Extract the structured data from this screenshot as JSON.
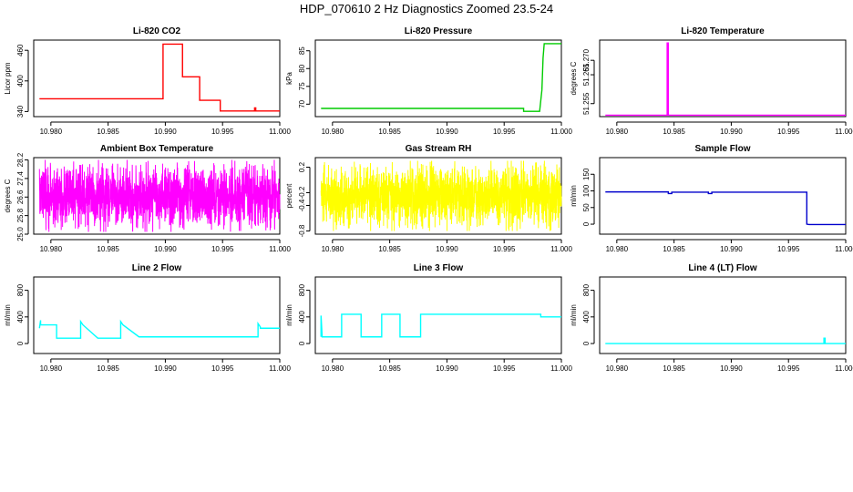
{
  "page_title": "HDP_070610  2 Hz Diagnostics Zoomed 23.5-24",
  "chart_data": [
    {
      "type": "line",
      "title": "Li-820 CO2",
      "ylabel": "Licor ppm",
      "color": "#ff0000",
      "xlim": [
        10.9785,
        11.0
      ],
      "ylim": [
        330,
        480
      ],
      "xticks": [
        10.98,
        10.985,
        10.99,
        10.995,
        11.0
      ],
      "xtick_labels": [
        "10.980",
        "10.985",
        "10.990",
        "10.995",
        "11.000"
      ],
      "yticks": [
        340,
        400,
        460
      ],
      "ytick_labels": [
        "340",
        "400",
        "460"
      ],
      "series": [
        {
          "x": [
            10.979,
            10.9898,
            10.9898,
            10.9915,
            10.9915,
            10.993,
            10.993,
            10.9948,
            10.9948,
            10.9978,
            10.9978,
            10.9979,
            10.9979,
            11.0
          ],
          "y": [
            365,
            365,
            472,
            472,
            408,
            408,
            362,
            362,
            341,
            341,
            347,
            347,
            341,
            341
          ]
        }
      ]
    },
    {
      "type": "line",
      "title": "Li-820 Pressure",
      "ylabel": "kPa",
      "color": "#00cc00",
      "xlim": [
        10.9785,
        11.0
      ],
      "ylim": [
        66.5,
        88
      ],
      "xticks": [
        10.98,
        10.985,
        10.99,
        10.995,
        11.0
      ],
      "xtick_labels": [
        "10.980",
        "10.985",
        "10.990",
        "10.995",
        "11.000"
      ],
      "yticks": [
        70,
        75,
        80,
        85
      ],
      "ytick_labels": [
        "70",
        "75",
        "80",
        "85"
      ],
      "series": [
        {
          "x": [
            10.979,
            10.9967,
            10.9967,
            10.9981,
            10.9983,
            10.9984,
            10.9985,
            10.9992,
            11.0
          ],
          "y": [
            68.8,
            68.8,
            68.0,
            68.0,
            74.0,
            83.0,
            87.0,
            87.0,
            87.0
          ]
        }
      ]
    },
    {
      "type": "line",
      "title": "Li-820 Temperature",
      "ylabel": "degrees C",
      "color": "#ff00ff",
      "xlim": [
        10.9785,
        11.0
      ],
      "ylim": [
        51.2505,
        51.277
      ],
      "xticks": [
        10.98,
        10.985,
        10.99,
        10.995,
        11.0
      ],
      "xtick_labels": [
        "10.980",
        "10.985",
        "10.990",
        "10.995",
        "11.000"
      ],
      "yticks": [
        51.255,
        51.265,
        51.27
      ],
      "ytick_labels": [
        "51.255",
        "51.265",
        "51.270"
      ],
      "series": [
        {
          "x": [
            10.979,
            10.9844,
            10.9844,
            10.9845,
            10.9845,
            11.0
          ],
          "y": [
            51.251,
            51.251,
            51.276,
            51.276,
            51.251,
            51.251
          ]
        }
      ]
    },
    {
      "type": "line",
      "title": "Ambient Box Temperature",
      "ylabel": "degrees C",
      "color": "#ff00ff",
      "xlim": [
        10.9785,
        11.0
      ],
      "ylim": [
        25.0,
        28.3
      ],
      "xticks": [
        10.98,
        10.985,
        10.99,
        10.995,
        11.0
      ],
      "xtick_labels": [
        "10.980",
        "10.985",
        "10.990",
        "10.995",
        "11.000"
      ],
      "yticks": [
        25.0,
        25.8,
        26.6,
        27.4,
        28.2
      ],
      "ytick_labels": [
        "25.0",
        "25.8",
        "26.6",
        "27.4",
        "28.2"
      ],
      "noise": {
        "x_start": 10.979,
        "x_end": 11.0,
        "center": 26.6,
        "min": 25.1,
        "max": 28.2,
        "n": 1800
      }
    },
    {
      "type": "line",
      "title": "Gas Stream RH",
      "ylabel": "percent",
      "color": "#ffff00",
      "xlim": [
        10.9785,
        11.0
      ],
      "ylim": [
        -0.85,
        0.35
      ],
      "xticks": [
        10.98,
        10.985,
        10.99,
        10.995,
        11.0
      ],
      "xtick_labels": [
        "10.980",
        "10.985",
        "10.990",
        "10.995",
        "11.000"
      ],
      "yticks": [
        -0.8,
        -0.4,
        -0.2,
        0.2
      ],
      "ytick_labels": [
        "-0.8",
        "-0.4",
        "-0.2",
        "0.2"
      ],
      "noise": {
        "x_start": 10.979,
        "x_end": 11.0,
        "center": -0.25,
        "min": -0.8,
        "max": 0.3,
        "n": 1800
      }
    },
    {
      "type": "line",
      "title": "Sample Flow",
      "ylabel": "ml/min",
      "color": "#0000cc",
      "xlim": [
        10.9785,
        11.0
      ],
      "ylim": [
        -30,
        200
      ],
      "xticks": [
        10.98,
        10.985,
        10.99,
        10.995,
        11.0
      ],
      "xtick_labels": [
        "10.980",
        "10.985",
        "10.990",
        "10.995",
        "11.000"
      ],
      "yticks": [
        0,
        50,
        100,
        150
      ],
      "ytick_labels": [
        "0",
        "50",
        "100",
        "150"
      ],
      "series": [
        {
          "x": [
            10.979,
            10.9845,
            10.9845,
            10.9848,
            10.9848,
            10.988,
            10.988,
            10.9883,
            10.9883,
            10.9966,
            10.9966,
            10.9968,
            11.0
          ],
          "y": [
            97,
            97,
            92,
            92,
            96,
            96,
            92,
            92,
            96,
            96,
            0,
            -1,
            -1
          ]
        }
      ]
    },
    {
      "type": "line",
      "title": "Line 2 Flow",
      "ylabel": "ml/min",
      "color": "#00ffff",
      "xlim": [
        10.9785,
        11.0
      ],
      "ylim": [
        -150,
        1000
      ],
      "xticks": [
        10.98,
        10.985,
        10.99,
        10.995,
        11.0
      ],
      "xtick_labels": [
        "10.980",
        "10.985",
        "10.990",
        "10.995",
        "11.000"
      ],
      "yticks": [
        0,
        400,
        800
      ],
      "ytick_labels": [
        "0",
        "400",
        "800"
      ],
      "series": [
        {
          "x": [
            10.979,
            10.9791,
            10.9791,
            10.9805,
            10.9805,
            10.9826,
            10.9826,
            10.9828,
            10.9828,
            10.9841,
            10.9841,
            10.9861,
            10.9861,
            10.9863,
            10.9863,
            10.9877,
            10.9877,
            10.9981,
            10.9981,
            10.9983,
            10.9983,
            11.0
          ],
          "y": [
            230,
            350,
            280,
            280,
            80,
            80,
            330,
            280,
            280,
            80,
            80,
            80,
            330,
            280,
            280,
            100,
            100,
            100,
            300,
            250,
            230,
            230
          ]
        }
      ]
    },
    {
      "type": "line",
      "title": "Line 3 Flow",
      "ylabel": "ml/min",
      "color": "#00ffff",
      "xlim": [
        10.9785,
        11.0
      ],
      "ylim": [
        -150,
        1000
      ],
      "xticks": [
        10.98,
        10.985,
        10.99,
        10.995,
        11.0
      ],
      "xtick_labels": [
        "10.980",
        "10.985",
        "10.990",
        "10.995",
        "11.000"
      ],
      "yticks": [
        0,
        400,
        800
      ],
      "ytick_labels": [
        "0",
        "400",
        "800"
      ],
      "series": [
        {
          "x": [
            10.979,
            10.979,
            10.9791,
            10.9808,
            10.9808,
            10.9825,
            10.9825,
            10.9843,
            10.9843,
            10.9859,
            10.9859,
            10.9877,
            10.9877,
            10.9982,
            10.9982,
            11.0
          ],
          "y": [
            100,
            420,
            100,
            100,
            440,
            440,
            100,
            100,
            440,
            440,
            100,
            100,
            440,
            440,
            400,
            400
          ]
        }
      ]
    },
    {
      "type": "line",
      "title": "Line 4 (LT) Flow",
      "ylabel": "ml/min",
      "color": "#00ffff",
      "xlim": [
        10.9785,
        11.0
      ],
      "ylim": [
        -150,
        1000
      ],
      "xticks": [
        10.98,
        10.985,
        10.99,
        10.995,
        11.0
      ],
      "xtick_labels": [
        "10.980",
        "10.985",
        "10.990",
        "10.995",
        "11.000"
      ],
      "yticks": [
        0,
        400,
        800
      ],
      "ytick_labels": [
        "0",
        "400",
        "800"
      ],
      "series": [
        {
          "x": [
            10.979,
            10.9981,
            10.9981,
            10.9982,
            10.9982,
            11.0
          ],
          "y": [
            0,
            0,
            80,
            80,
            0,
            0
          ]
        }
      ]
    }
  ]
}
